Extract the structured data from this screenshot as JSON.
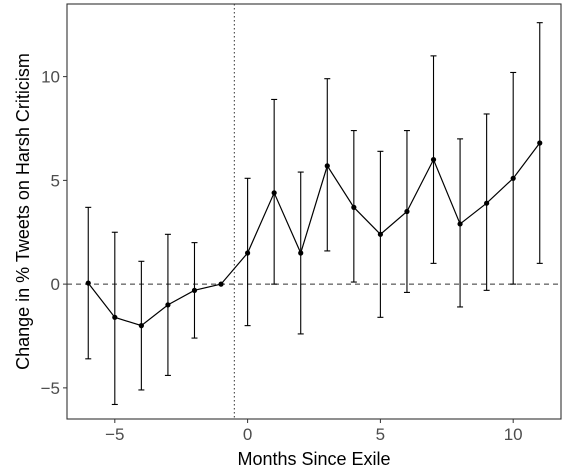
{
  "chart_data": {
    "type": "line",
    "xlabel": "Months Since Exile",
    "ylabel": "Change in % Tweets on Harsh Criticism",
    "xlim": [
      -6.8,
      11.8
    ],
    "ylim": [
      -6.5,
      13.5
    ],
    "x_ticks": [
      -5,
      0,
      5,
      10
    ],
    "y_ticks": [
      -5,
      0,
      5,
      10
    ],
    "x_tick_labels": [
      "−5",
      "0",
      "5",
      "10"
    ],
    "y_tick_labels": [
      "−5",
      "0",
      "5",
      "10"
    ],
    "grid": false,
    "legend": "none",
    "reference_lines": {
      "horizontal_y": 0,
      "horizontal_style": "dashed",
      "vertical_x": -0.5,
      "vertical_style": "dotted"
    },
    "series": [
      {
        "x": [
          -6,
          -5,
          -4,
          -3,
          -2,
          -1,
          0,
          1,
          2,
          3,
          4,
          5,
          6,
          7,
          8,
          9,
          10,
          11
        ],
        "y": [
          0.05,
          -1.6,
          -2.0,
          -1.0,
          -0.3,
          0.0,
          1.5,
          4.4,
          1.5,
          5.7,
          3.7,
          2.4,
          3.5,
          6.0,
          2.9,
          3.9,
          5.1,
          6.8
        ],
        "ci_low": [
          -3.6,
          -5.8,
          -5.1,
          -4.4,
          -2.6,
          0.0,
          -2.0,
          0.0,
          -2.4,
          1.6,
          0.1,
          -1.6,
          -0.4,
          1.0,
          -1.1,
          -0.3,
          0.0,
          1.0
        ],
        "ci_high": [
          3.7,
          2.5,
          1.1,
          2.4,
          2.0,
          0.0,
          5.1,
          8.9,
          5.4,
          9.9,
          7.4,
          6.4,
          7.4,
          11.0,
          7.0,
          8.2,
          10.2,
          12.6
        ]
      }
    ],
    "colors": {
      "line": "#000000",
      "points": "#000000",
      "axes": "#333333"
    }
  }
}
